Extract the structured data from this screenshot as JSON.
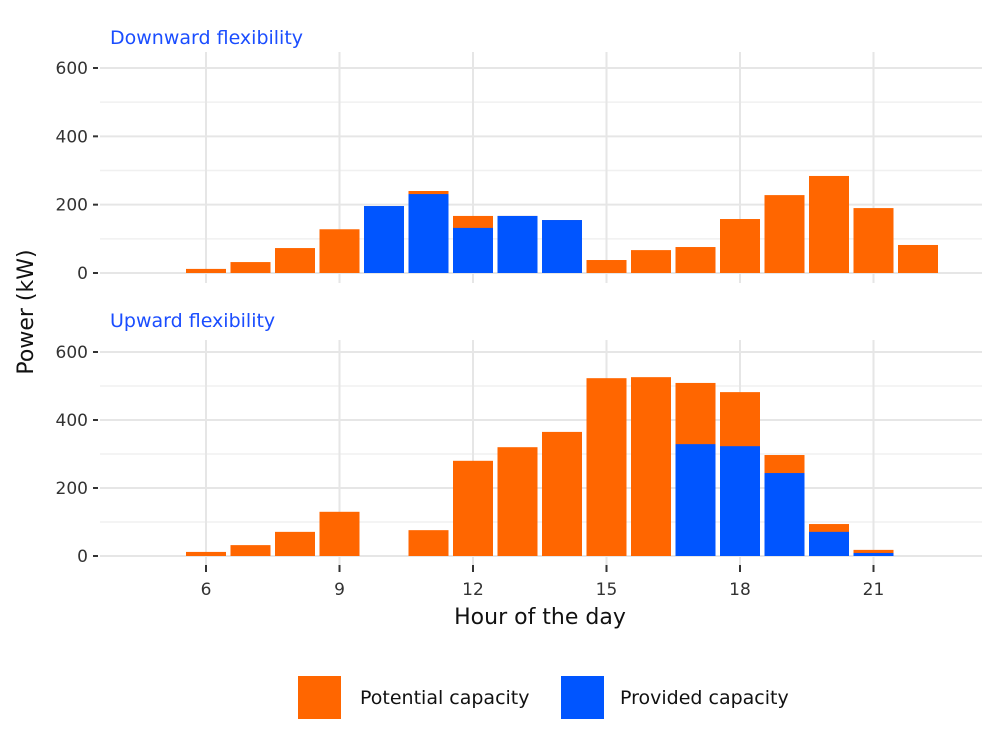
{
  "chart_data": {
    "type": "bar",
    "stacked": true,
    "ylabel": "Power (kW)",
    "xlabel": "Hour of the day",
    "x_ticks": [
      6,
      9,
      12,
      15,
      18,
      21
    ],
    "y_ticks": [
      0,
      200,
      400,
      600
    ],
    "xlim": [
      3.5,
      23.5
    ],
    "ylim": [
      0,
      600
    ],
    "grid": true,
    "legend_position": "bottom",
    "colors": {
      "potential": "#ff6600",
      "provided": "#0055ff",
      "panel_title": "#1a4dff"
    },
    "legend": [
      {
        "key": "potential",
        "label": "Potential capacity"
      },
      {
        "key": "provided",
        "label": "Provided capacity"
      }
    ],
    "panels": [
      {
        "title": "Downward flexibility",
        "hours": [
          6,
          7,
          8,
          9,
          10,
          11,
          12,
          13,
          14,
          15,
          16,
          17,
          18,
          19,
          20,
          21,
          22
        ],
        "potential": [
          12,
          32,
          73,
          128,
          196,
          240,
          167,
          167,
          155,
          38,
          67,
          76,
          158,
          228,
          284,
          190,
          82
        ],
        "provided": [
          0,
          0,
          0,
          0,
          196,
          231,
          132,
          167,
          155,
          0,
          0,
          0,
          0,
          0,
          0,
          0,
          0
        ]
      },
      {
        "title": "Upward flexibility",
        "hours": [
          6,
          7,
          8,
          9,
          10,
          11,
          12,
          13,
          14,
          15,
          16,
          17,
          18,
          19,
          20,
          21,
          22
        ],
        "potential": [
          12,
          32,
          71,
          130,
          0,
          76,
          280,
          320,
          365,
          523,
          526,
          509,
          482,
          297,
          94,
          18,
          0
        ],
        "provided": [
          0,
          0,
          0,
          0,
          0,
          0,
          0,
          0,
          0,
          0,
          0,
          329,
          323,
          244,
          71,
          9,
          0
        ]
      }
    ]
  }
}
